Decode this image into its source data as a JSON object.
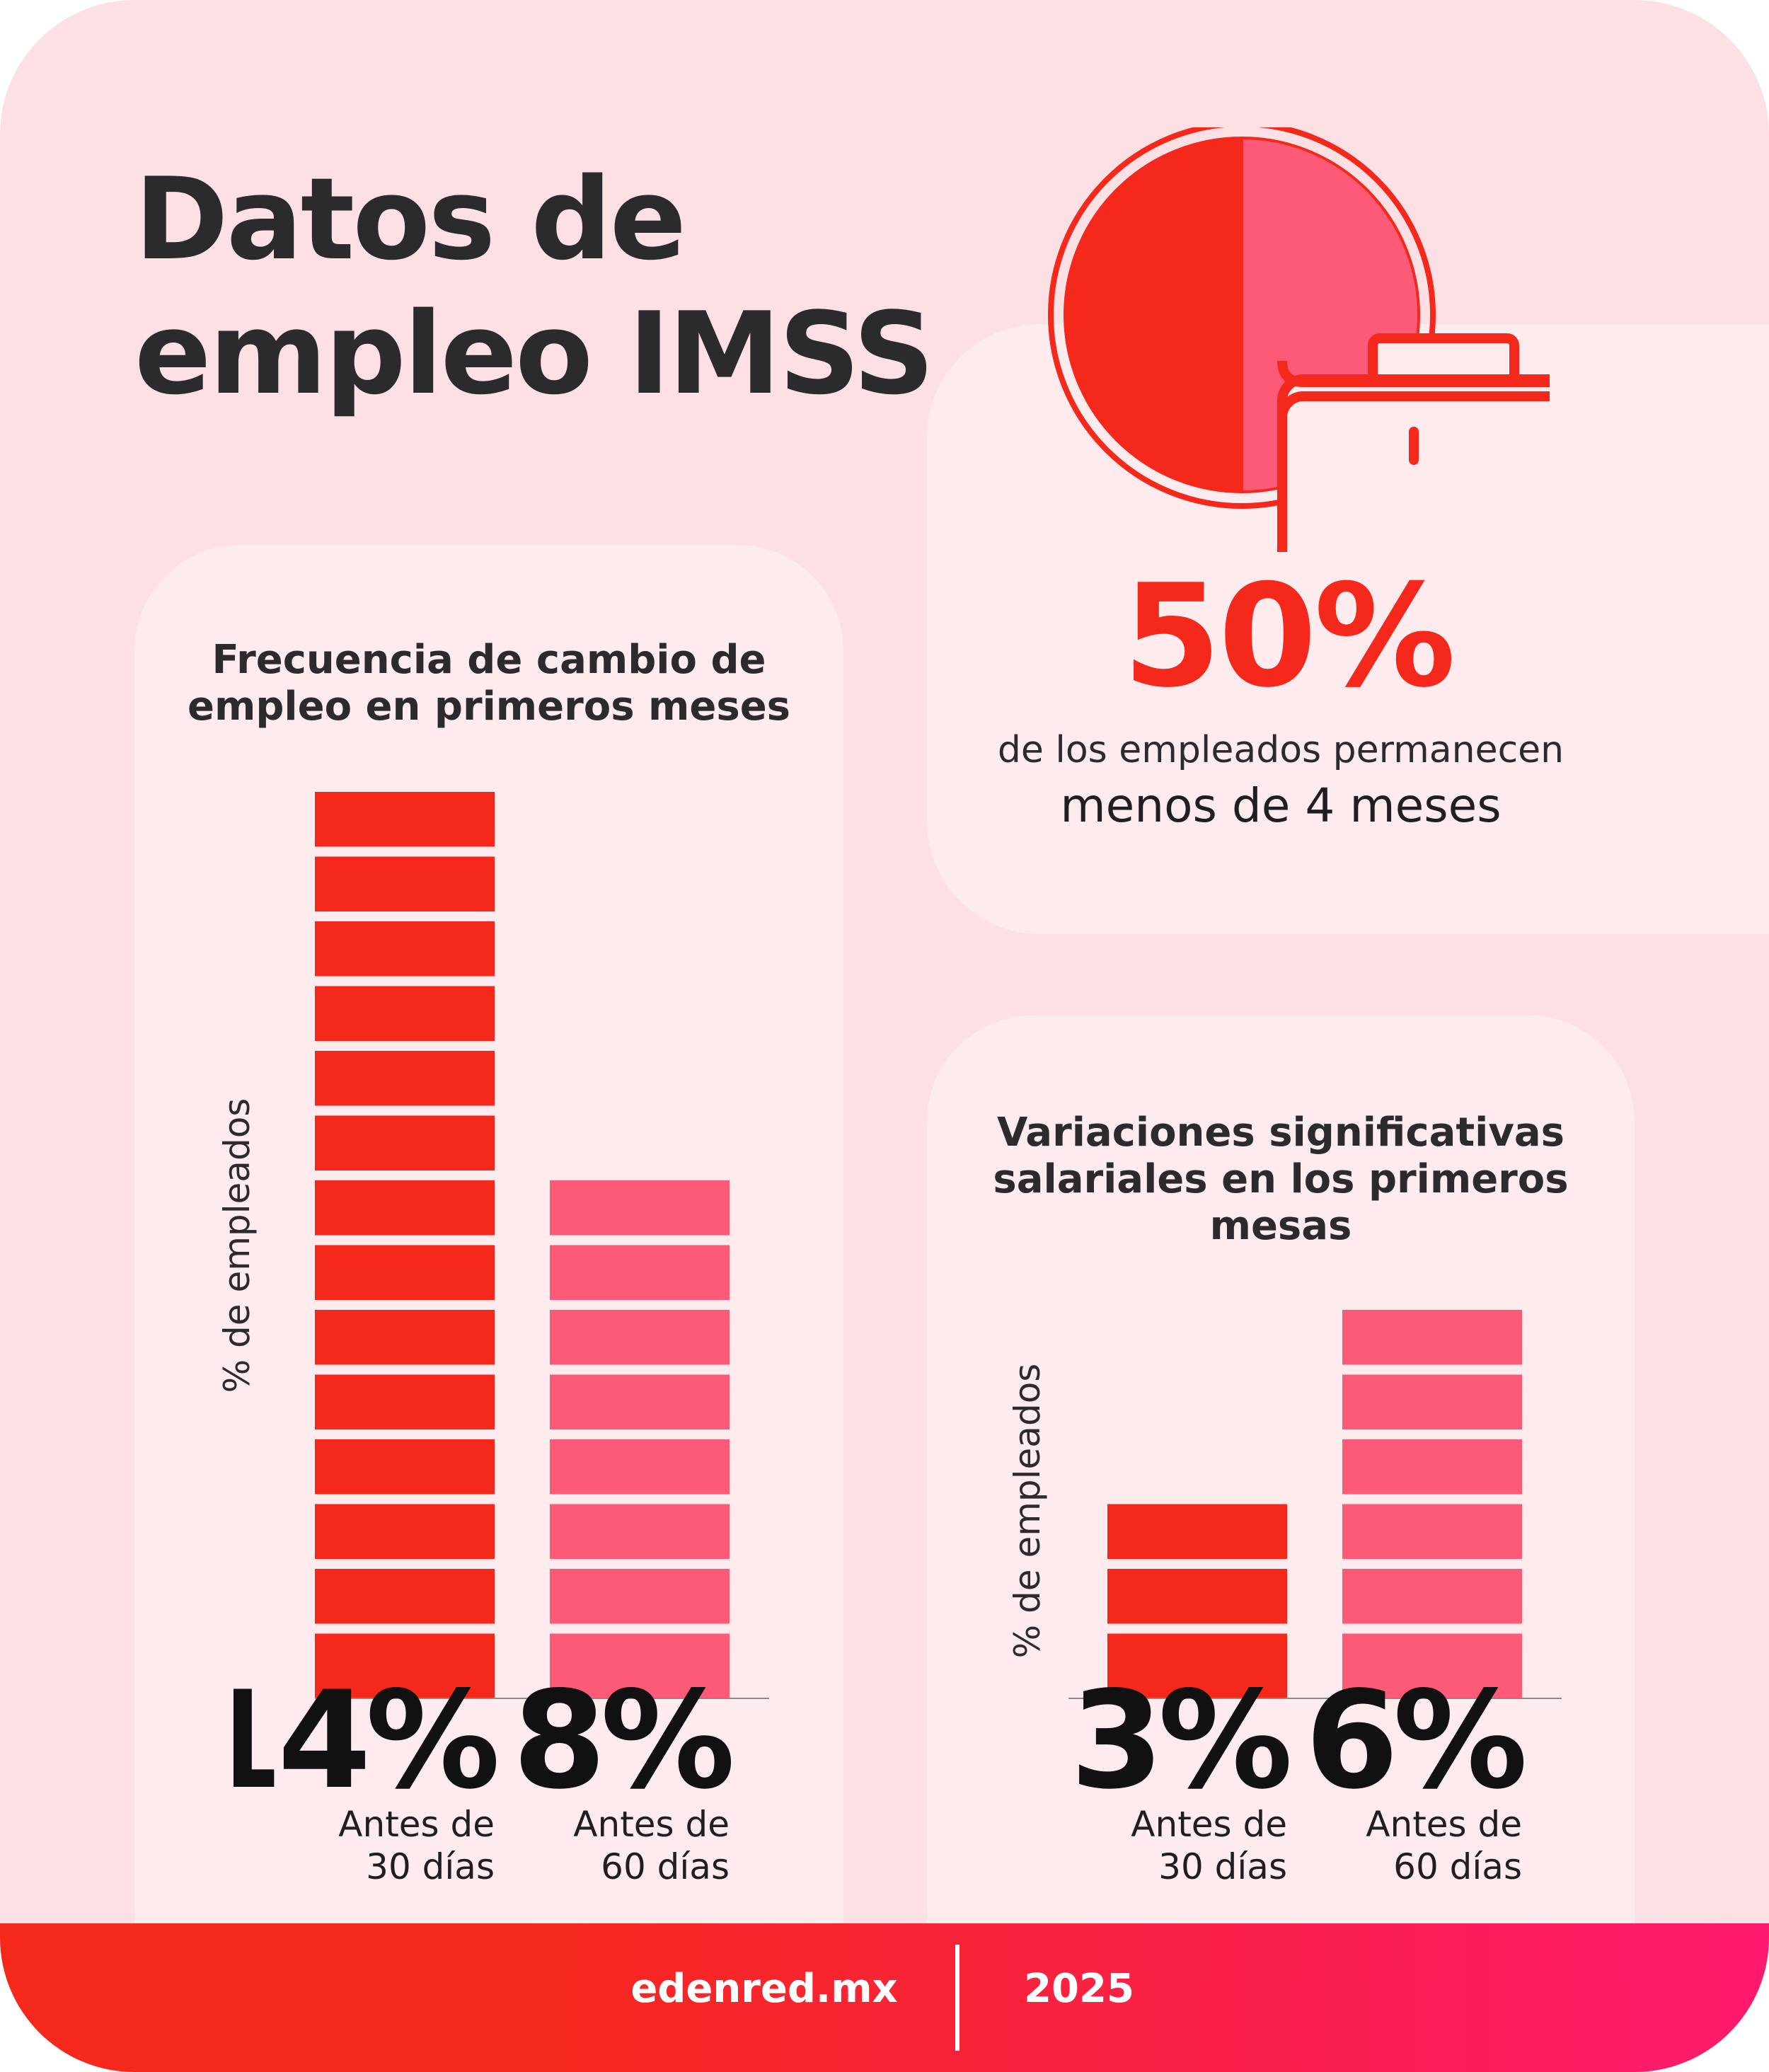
{
  "title": [
    "Datos de",
    "empleo IMSS"
  ],
  "highlight": {
    "value": "50%",
    "line1": "de los empleados permanecen",
    "line2": "menos de 4 meses",
    "icon": "briefcase-icon"
  },
  "colors": {
    "primary": "#f5281c",
    "secondary": "#fd5a78",
    "text": "#2b2b2e",
    "background": "#fde0e4",
    "card": "#fdebee"
  },
  "chart_data": [
    {
      "type": "bar",
      "title": [
        "Frecuencia de cambio de",
        "empleo en primeros meses"
      ],
      "ylabel": "% de empleados",
      "categories": [
        [
          "Antes de",
          "30 días"
        ],
        [
          "Antes de",
          "60 días"
        ]
      ],
      "values": [
        14,
        8
      ],
      "value_labels": [
        "14%",
        "8%"
      ],
      "ylim": [
        0,
        14
      ],
      "grid": false,
      "colors": [
        "#f5281c",
        "#fd5a78"
      ]
    },
    {
      "type": "bar",
      "title": [
        "Variaciones significativas",
        "salariales en los primeros",
        "mesas"
      ],
      "ylabel": "% de empleados",
      "categories": [
        [
          "Antes de",
          "30 días"
        ],
        [
          "Antes de",
          "60 días"
        ]
      ],
      "values": [
        3,
        6
      ],
      "value_labels": [
        "3%",
        "6%"
      ],
      "ylim": [
        0,
        6
      ],
      "grid": false,
      "colors": [
        "#f5281c",
        "#fd5a78"
      ]
    },
    {
      "type": "pie",
      "values": [
        50,
        50
      ],
      "colors": [
        "#f5281c",
        "#fd5a78"
      ]
    }
  ],
  "footer": {
    "site": "edenred.mx",
    "year": "2025"
  }
}
